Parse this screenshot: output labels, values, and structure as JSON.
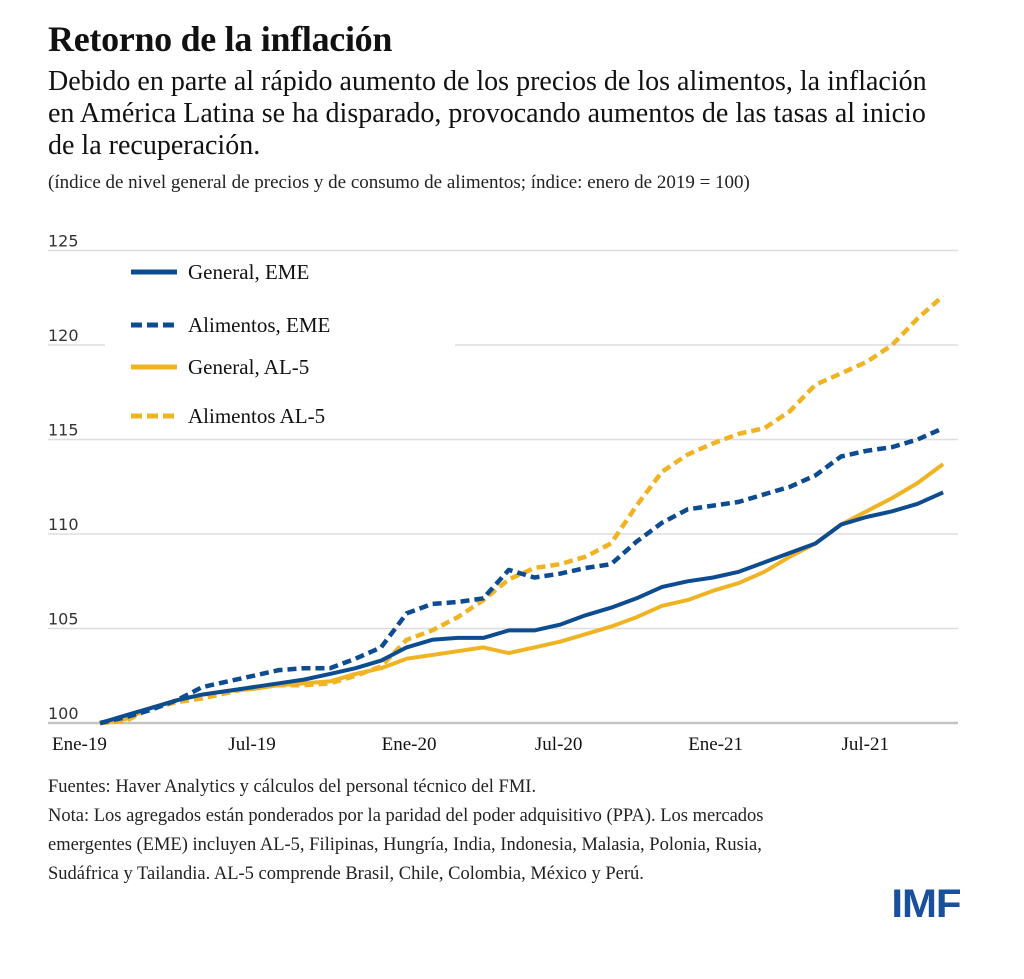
{
  "header": {
    "title": "Retorno de la inflación",
    "subtitle": "Debido en parte al rápido aumento de los precios de los alimentos, la inflación en América Latina se ha disparado, provocando aumentos de las tasas al inicio de la recuperación.",
    "units": "(índice de nivel general de precios y de consumo de alimentos; índice: enero de 2019 = 100)"
  },
  "footer": {
    "sources": "Fuentes: Haver Analytics y cálculos del personal técnico del FMI.",
    "note_line1": "Nota: Los agregados están ponderados por la paridad del poder adquisitivo (PPA). Los mercados",
    "note_line2": "emergentes (EME) incluyen AL-5, Filipinas, Hungría, India, Indonesia, Malasia, Polonia, Rusia,",
    "note_line3": "Sudáfrica y Tailandia. AL-5 comprende Brasil, Chile, Colombia, México y Perú."
  },
  "logo": {
    "text": "IMF",
    "color": "#1a4f9c"
  },
  "chart_data": {
    "type": "line",
    "title": "Retorno de la inflación",
    "xlabel": "",
    "ylabel": "",
    "ylim": [
      100,
      125
    ],
    "yticks": [
      100,
      105,
      110,
      115,
      120,
      125
    ],
    "grid": true,
    "legend_position": "top-left",
    "x_tick_labels": [
      {
        "month_index": 0,
        "label": "Ene-19"
      },
      {
        "month_index": 6,
        "label": "Jul-19"
      },
      {
        "month_index": 12,
        "label": "Ene-20"
      },
      {
        "month_index": 18,
        "label": "Jul-20"
      },
      {
        "month_index": 24,
        "label": "Ene-21"
      },
      {
        "month_index": 30,
        "label": "Jul-21"
      }
    ],
    "x": [
      "2019-01",
      "2019-02",
      "2019-03",
      "2019-04",
      "2019-05",
      "2019-06",
      "2019-07",
      "2019-08",
      "2019-09",
      "2019-10",
      "2019-11",
      "2019-12",
      "2020-01",
      "2020-02",
      "2020-03",
      "2020-04",
      "2020-05",
      "2020-06",
      "2020-07",
      "2020-08",
      "2020-09",
      "2020-10",
      "2020-11",
      "2020-12",
      "2021-01",
      "2021-02",
      "2021-03",
      "2021-04",
      "2021-05",
      "2021-06",
      "2021-07",
      "2021-08",
      "2021-09",
      "2021-10"
    ],
    "series": [
      {
        "name": "General, EME",
        "color": "#0e4c92",
        "dashed": false,
        "values": [
          100.0,
          100.4,
          100.8,
          101.2,
          101.5,
          101.7,
          101.9,
          102.1,
          102.3,
          102.6,
          102.9,
          103.3,
          104.0,
          104.4,
          104.5,
          104.5,
          104.9,
          104.9,
          105.2,
          105.7,
          106.1,
          106.6,
          107.2,
          107.5,
          107.7,
          108.0,
          108.5,
          109.0,
          109.5,
          110.5,
          110.9,
          111.2,
          111.6,
          112.2
        ]
      },
      {
        "name": "Alimentos, EME",
        "color": "#0e4c92",
        "dashed": true,
        "values": [
          100.0,
          100.3,
          100.7,
          101.2,
          101.9,
          102.2,
          102.5,
          102.8,
          102.9,
          102.9,
          103.4,
          104.0,
          105.8,
          106.3,
          106.4,
          106.6,
          108.1,
          107.7,
          107.9,
          108.2,
          108.4,
          109.6,
          110.6,
          111.3,
          111.5,
          111.7,
          112.1,
          112.5,
          113.1,
          114.1,
          114.4,
          114.6,
          115.0,
          115.6
        ]
      },
      {
        "name": "General, AL-5",
        "color": "#f0b323",
        "dashed": false,
        "values": [
          100.0,
          100.2,
          100.8,
          101.2,
          101.5,
          101.7,
          101.8,
          102.0,
          102.1,
          102.2,
          102.6,
          102.9,
          103.4,
          103.6,
          103.8,
          104.0,
          103.7,
          104.0,
          104.3,
          104.7,
          105.1,
          105.6,
          106.2,
          106.5,
          107.0,
          107.4,
          108.0,
          108.8,
          109.5,
          110.5,
          111.2,
          111.9,
          112.7,
          113.7
        ]
      },
      {
        "name": "Alimentos AL-5",
        "color": "#f0b323",
        "dashed": true,
        "values": [
          100.0,
          100.1,
          100.8,
          101.1,
          101.3,
          101.6,
          101.9,
          102.0,
          102.0,
          102.1,
          102.5,
          103.0,
          104.4,
          104.9,
          105.6,
          106.5,
          107.6,
          108.2,
          108.4,
          108.8,
          109.5,
          111.5,
          113.3,
          114.2,
          114.8,
          115.3,
          115.6,
          116.5,
          117.9,
          118.5,
          119.1,
          120.0,
          121.4,
          122.6
        ]
      }
    ]
  }
}
